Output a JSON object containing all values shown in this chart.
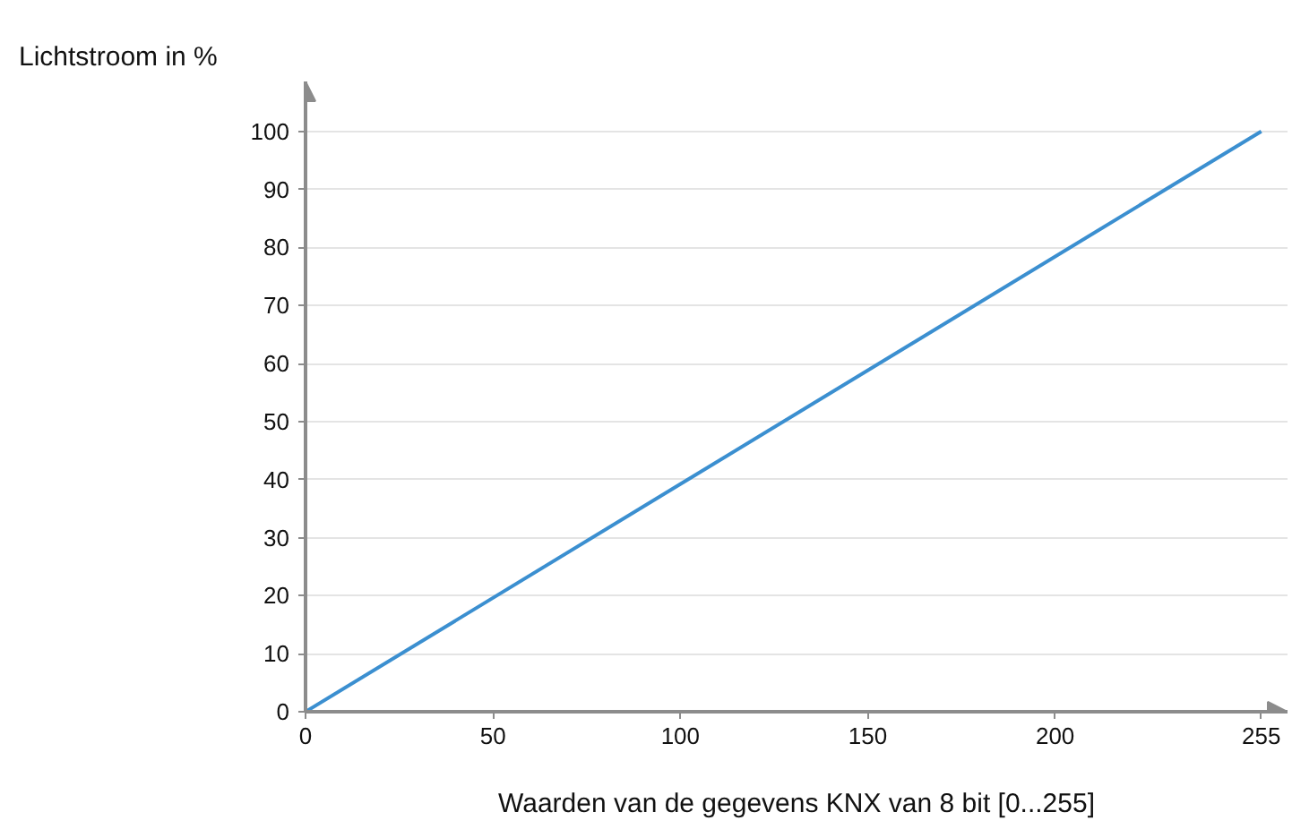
{
  "chart_data": {
    "type": "line",
    "xlabel": "Waarden van de gegevens KNX van 8 bit [0...255]",
    "ylabel": "Lichtstroom in %",
    "x": [
      0,
      255
    ],
    "series": [
      {
        "color": "#3b8fd0",
        "values": [
          0,
          100
        ]
      }
    ],
    "xlim": [
      0,
      262
    ],
    "ylim": [
      0,
      108.6
    ],
    "xticks": [
      0,
      50,
      100,
      150,
      200,
      255
    ],
    "yticks": [
      0,
      10,
      20,
      30,
      40,
      50,
      60,
      70,
      80,
      90,
      100
    ],
    "grid": "y",
    "marker": "none",
    "line_style": "solid"
  }
}
